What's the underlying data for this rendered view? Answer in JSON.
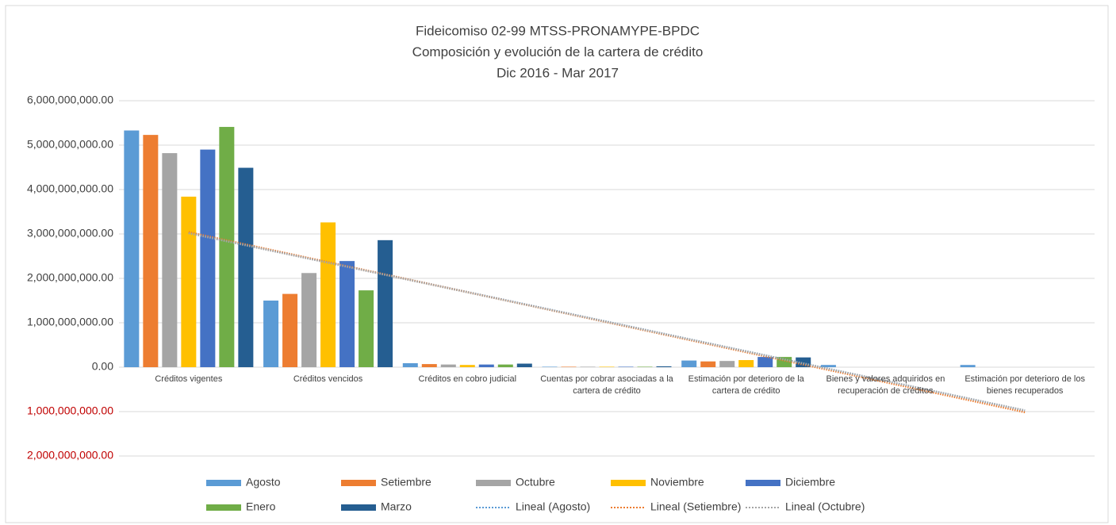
{
  "chart_data": {
    "type": "bar",
    "title": [
      "Fideicomiso 02-99 MTSS-PRONAMYPE-BPDC",
      "Composición y evolución de la cartera de crédito",
      "Dic 2016 - Mar 2017"
    ],
    "categories": [
      "Créditos vigentes",
      "Créditos vencidos",
      "Créditos en cobro judicial",
      "Cuentas por cobrar asociadas a la cartera de crédito",
      "Estimación por deterioro de la cartera de crédito",
      "Bienes y valores adquiridos en recuperación de créditos",
      "Estimación por deterioro de los bienes recuperados"
    ],
    "series": [
      {
        "name": "Agosto",
        "color": "#5b9bd5",
        "values": [
          5330000000,
          1500000000,
          90000000,
          10000000,
          150000000,
          50000000,
          50000000
        ]
      },
      {
        "name": "Setiembre",
        "color": "#ed7d31",
        "values": [
          5230000000,
          1650000000,
          70000000,
          10000000,
          130000000,
          0,
          0
        ]
      },
      {
        "name": "Octubre",
        "color": "#a5a5a5",
        "values": [
          4820000000,
          2120000000,
          60000000,
          10000000,
          140000000,
          0,
          0
        ]
      },
      {
        "name": "Noviembre",
        "color": "#ffc000",
        "values": [
          3840000000,
          3260000000,
          50000000,
          10000000,
          160000000,
          0,
          0
        ]
      },
      {
        "name": "Diciembre",
        "color": "#4472c4",
        "values": [
          4900000000,
          2390000000,
          60000000,
          10000000,
          230000000,
          0,
          0
        ]
      },
      {
        "name": "Enero",
        "color": "#70ad47",
        "values": [
          5410000000,
          1730000000,
          60000000,
          10000000,
          230000000,
          0,
          0
        ]
      },
      {
        "name": "Marzo",
        "color": "#255e91",
        "values": [
          4490000000,
          2860000000,
          80000000,
          20000000,
          220000000,
          0,
          0
        ]
      }
    ],
    "trendlines": [
      {
        "name": "Lineal (Agosto)",
        "series": 0,
        "color": "#5b9bd5"
      },
      {
        "name": "Lineal (Setiembre)",
        "series": 1,
        "color": "#ed7d31"
      },
      {
        "name": "Lineal (Octubre)",
        "series": 2,
        "color": "#a5a5a5"
      }
    ],
    "ylim": [
      -2000000000,
      6000000000
    ],
    "yticks": [
      {
        "value": 6000000000,
        "label": "6,000,000,000.00"
      },
      {
        "value": 5000000000,
        "label": "5,000,000,000.00"
      },
      {
        "value": 4000000000,
        "label": "4,000,000,000.00"
      },
      {
        "value": 3000000000,
        "label": "3,000,000,000.00"
      },
      {
        "value": 2000000000,
        "label": "2,000,000,000.00"
      },
      {
        "value": 1000000000,
        "label": "1,000,000,000.00"
      },
      {
        "value": 0,
        "label": "0.00"
      },
      {
        "value": -1000000000,
        "label": "1,000,000,000.00"
      },
      {
        "value": -2000000000,
        "label": "2,000,000,000.00"
      }
    ],
    "negative_tick_color": "#c00000",
    "grid": true,
    "legend": "bottom"
  }
}
